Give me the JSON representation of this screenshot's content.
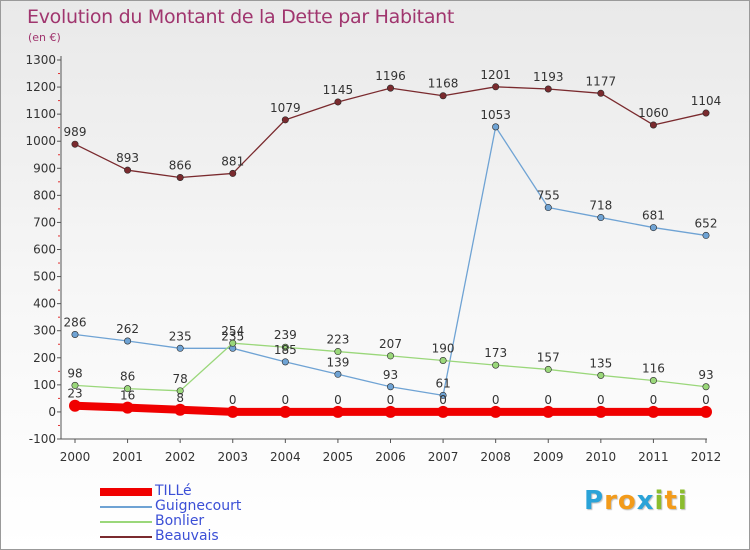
{
  "title": "Evolution du Montant de la Dette par Habitant",
  "subtitle": "(en €)",
  "brand": {
    "letters": [
      "P",
      "r",
      "o",
      "x",
      "i",
      "t",
      "i"
    ],
    "colors": [
      "#2aa3d8",
      "#f39b1a",
      "#f39b1a",
      "#2aa3d8",
      "#8bbd2e",
      "#f39b1a",
      "#8bbd2e"
    ]
  },
  "chart_data": {
    "type": "line",
    "x": [
      "2000",
      "2001",
      "2002",
      "2003",
      "2004",
      "2005",
      "2006",
      "2007",
      "2008",
      "2009",
      "2010",
      "2011",
      "2012"
    ],
    "ylim": [
      -100,
      1300
    ],
    "yticks": [
      "-100",
      "0",
      "100",
      "200",
      "300",
      "400",
      "500",
      "600",
      "700",
      "800",
      "900",
      "1000",
      "1100",
      "1200",
      "1300"
    ],
    "grid": false,
    "legend_position": "bottom-left",
    "series": [
      {
        "name": "TILLé",
        "color": "#f00000",
        "values": [
          23,
          16,
          8,
          0,
          0,
          0,
          0,
          0,
          0,
          0,
          0,
          0,
          0
        ],
        "labels": [
          "23",
          "16",
          "8",
          "0",
          "0",
          "0",
          "0",
          "0",
          "0",
          "0",
          "0",
          "0",
          "0"
        ]
      },
      {
        "name": "Guignecourt",
        "color": "#6fa3d4",
        "values": [
          286,
          262,
          235,
          235,
          185,
          139,
          93,
          61,
          1053,
          755,
          718,
          681,
          652
        ],
        "labels": [
          "286",
          "262",
          "235",
          "235",
          "185",
          "139",
          "93",
          "61",
          "1053",
          "755",
          "718",
          "681",
          "652"
        ]
      },
      {
        "name": "Bonlier",
        "color": "#9ad77a",
        "values": [
          98,
          86,
          78,
          254,
          239,
          223,
          207,
          190,
          173,
          157,
          135,
          116,
          93
        ],
        "labels": [
          "98",
          "86",
          "78",
          "254",
          "239",
          "223",
          "207",
          "190",
          "173",
          "157",
          "135",
          "116",
          "93"
        ]
      },
      {
        "name": "Beauvais",
        "color": "#7a2a2e",
        "values": [
          989,
          893,
          866,
          881,
          1079,
          1145,
          1196,
          1168,
          1201,
          1193,
          1177,
          1060,
          1104
        ],
        "labels": [
          "989",
          "893",
          "866",
          "881",
          "1079",
          "1145",
          "1196",
          "1168",
          "1201",
          "1193",
          "1177",
          "1060",
          "1104"
        ]
      }
    ]
  }
}
